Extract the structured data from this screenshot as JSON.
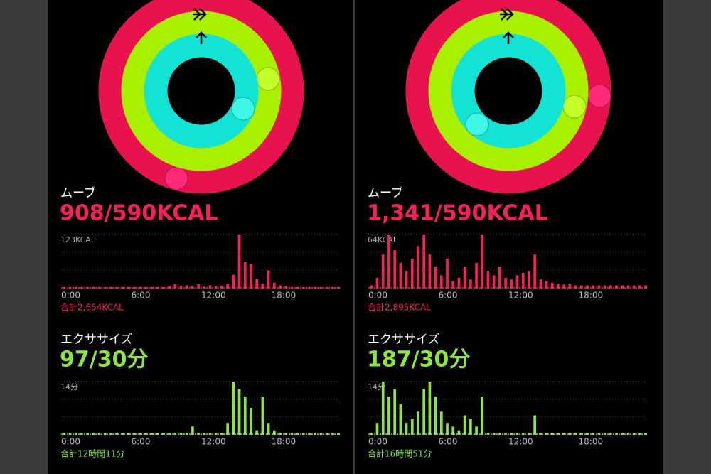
{
  "chart_data": [
    {
      "type": "bar",
      "title": "ムーブ",
      "subtitle": "908/590KCAL",
      "footer": "合計2,654KCAL",
      "color": "#fa1e5a",
      "ylim": [
        0,
        123
      ],
      "yticks": [
        {
          "value": 123,
          "label": "123KCAL"
        }
      ],
      "xlim": [
        0,
        24
      ],
      "xticks": [
        {
          "value": 0,
          "label": "0:00"
        },
        {
          "value": 6,
          "label": "6:00"
        },
        {
          "value": 12,
          "label": "12:00"
        },
        {
          "value": 18,
          "label": "18:00"
        }
      ],
      "values": [
        2,
        2,
        2,
        2,
        2,
        2,
        2,
        2,
        2,
        2,
        2,
        2,
        2,
        2,
        2,
        2,
        2,
        2,
        4,
        8,
        5,
        6,
        4,
        8,
        3,
        6,
        4,
        5,
        8,
        30,
        123,
        60,
        55,
        20,
        10,
        40,
        12,
        6,
        4,
        2,
        2,
        2,
        2,
        2,
        2,
        2,
        2,
        2
      ]
    },
    {
      "type": "bar",
      "title": "エクササイズ",
      "subtitle": "97/30分",
      "footer": "合計12時間11分",
      "color": "#8ee53f",
      "ylim": [
        0,
        14
      ],
      "yticks": [
        {
          "value": 14,
          "label": "14分"
        }
      ],
      "xlim": [
        0,
        24
      ],
      "xticks": [
        {
          "value": 0,
          "label": "0:00"
        },
        {
          "value": 6,
          "label": "6:00"
        },
        {
          "value": 12,
          "label": "12:00"
        },
        {
          "value": 18,
          "label": "18:00"
        }
      ],
      "values": [
        0.3,
        0.3,
        0.3,
        0.3,
        0.3,
        0.3,
        0.3,
        0.3,
        0.3,
        0.3,
        0.3,
        0.3,
        0.3,
        0.3,
        0.3,
        0.3,
        0.3,
        0.3,
        0.3,
        0.3,
        0.3,
        0.3,
        2,
        0.3,
        0.3,
        0.3,
        0.3,
        0.3,
        3,
        14,
        12,
        10,
        7,
        1,
        10,
        3,
        1,
        0.3,
        0.3,
        0.3,
        0.3,
        0.3,
        0.3,
        0.3,
        0.3,
        0.3,
        0.3,
        0.3
      ]
    },
    {
      "type": "bar",
      "title": "ムーブ",
      "subtitle": "1,341/590KCAL",
      "footer": "合計2,895KCAL",
      "color": "#fa1e5a",
      "ylim": [
        0,
        64
      ],
      "yticks": [
        {
          "value": 64,
          "label": "64KCAL"
        }
      ],
      "xlim": [
        0,
        24
      ],
      "xticks": [
        {
          "value": 0,
          "label": "0:00"
        },
        {
          "value": 6,
          "label": "6:00"
        },
        {
          "value": 12,
          "label": "12:00"
        },
        {
          "value": 18,
          "label": "18:00"
        }
      ],
      "values": [
        3,
        12,
        40,
        64,
        45,
        30,
        20,
        35,
        50,
        64,
        40,
        25,
        15,
        35,
        8,
        12,
        25,
        10,
        30,
        64,
        20,
        15,
        25,
        12,
        10,
        15,
        18,
        20,
        40,
        10,
        8,
        6,
        5,
        4,
        5,
        3,
        3,
        3,
        3,
        3,
        3,
        3,
        3,
        3,
        3,
        3,
        3,
        3
      ]
    },
    {
      "type": "bar",
      "title": "エクササイズ",
      "subtitle": "187/30分",
      "footer": "合計16時間51分",
      "color": "#8ee53f",
      "ylim": [
        0,
        14
      ],
      "yticks": [
        {
          "value": 14,
          "label": "14分"
        }
      ],
      "xlim": [
        0,
        24
      ],
      "xticks": [
        {
          "value": 0,
          "label": "0:00"
        },
        {
          "value": 6,
          "label": "6:00"
        },
        {
          "value": 12,
          "label": "12:00"
        },
        {
          "value": 18,
          "label": "18:00"
        }
      ],
      "values": [
        0.3,
        3,
        14,
        10,
        12,
        8,
        3,
        4,
        6,
        12,
        14,
        10,
        6,
        3,
        2,
        1,
        5,
        4,
        2,
        10,
        0.3,
        0.3,
        0.3,
        0.3,
        0.3,
        0.3,
        0.3,
        0.3,
        5,
        0.3,
        0.3,
        0.3,
        0.3,
        0.3,
        0.3,
        0.3,
        0.3,
        0.3,
        0.3,
        0.3,
        0.3,
        0.3,
        0.3,
        0.3,
        0.3,
        0.3,
        0.3,
        0.3
      ]
    }
  ]
}
